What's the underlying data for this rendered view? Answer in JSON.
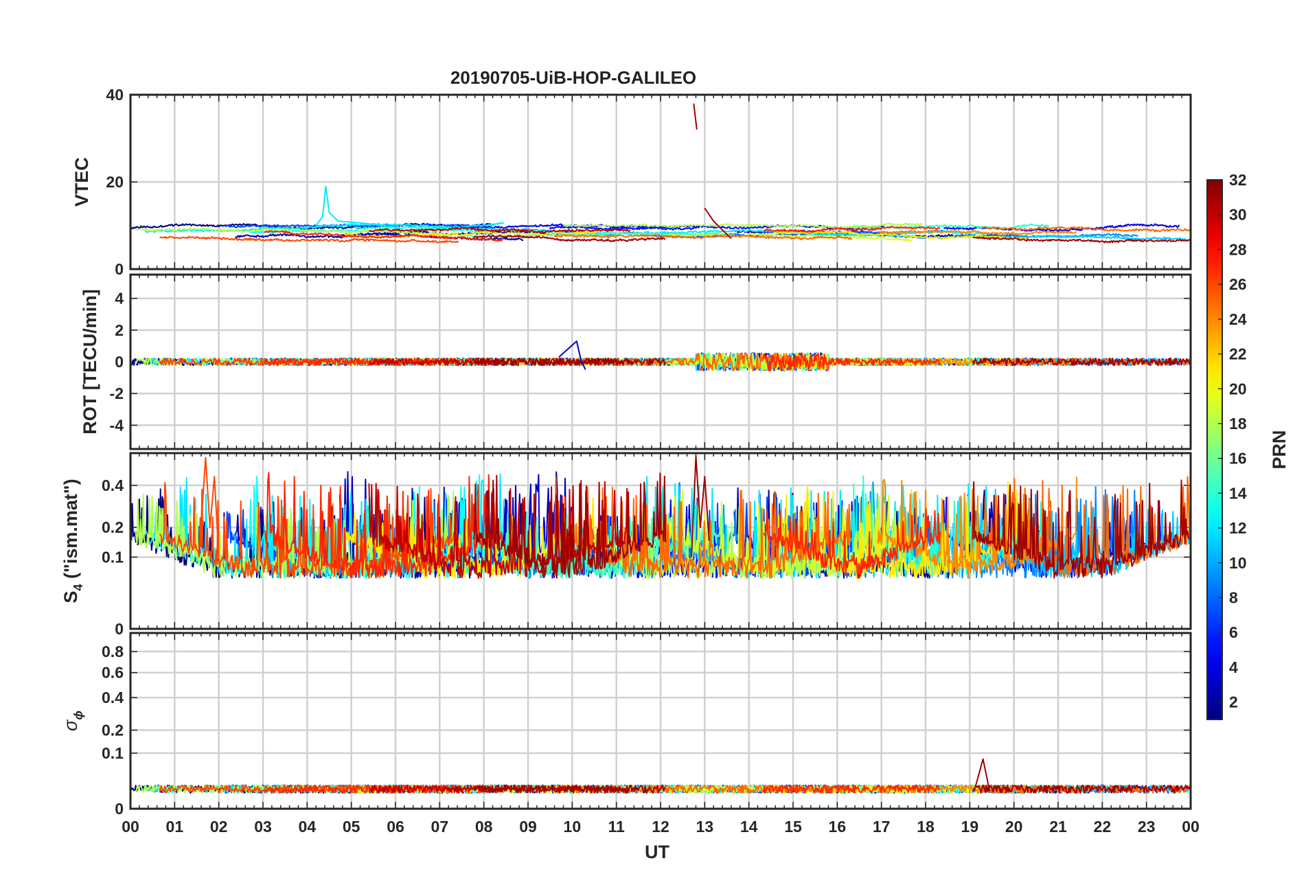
{
  "chart_data": {
    "title": "20190705-UiB-HOP-GALILEO",
    "type": "line",
    "xlabel": "UT",
    "x_tick_labels": [
      "00",
      "01",
      "02",
      "03",
      "04",
      "05",
      "06",
      "07",
      "08",
      "09",
      "10",
      "11",
      "12",
      "13",
      "14",
      "15",
      "16",
      "17",
      "18",
      "19",
      "20",
      "21",
      "22",
      "23",
      "00"
    ],
    "xlim_hours": [
      0,
      24
    ],
    "grid": true,
    "panels": [
      {
        "ylabel": "VTEC",
        "ylim": [
          0,
          40
        ],
        "yticks": [
          0,
          20,
          40
        ]
      },
      {
        "ylabel": "ROT [TECU/min]",
        "ylim": [
          -5.5,
          5.5
        ],
        "yticks": [
          -4,
          -2,
          0,
          2,
          4
        ]
      },
      {
        "ylabel_main": "S",
        "ylabel_sub": "4",
        "ylabel_rest": " (\"ism.mat\")",
        "ylim": [
          0,
          0.6
        ],
        "yticks": [
          0,
          0.1,
          0.2,
          0.4
        ],
        "scale": "sqrt"
      },
      {
        "ylabel_main": "σ",
        "ylabel_sub": "ϕ",
        "ylim": [
          0,
          1
        ],
        "yticks": [
          0,
          0.1,
          0.2,
          0.4,
          0.6,
          0.8
        ],
        "scale": "sqrt"
      }
    ],
    "colorbar": {
      "label": "PRN",
      "range": [
        1,
        32
      ],
      "tick_labels": [
        "2",
        "4",
        "6",
        "8",
        "10",
        "12",
        "14",
        "16",
        "18",
        "20",
        "22",
        "24",
        "26",
        "28",
        "30",
        "32"
      ],
      "colormap": "jet"
    },
    "series_prn": [
      1,
      2,
      3,
      4,
      5,
      7,
      8,
      9,
      11,
      12,
      13,
      14,
      15,
      18,
      19,
      21,
      24,
      25,
      26,
      27,
      30,
      31
    ],
    "notable_features": {
      "vtec_typical": 8.5,
      "vtec_spike_prn12_hour4_4": 19,
      "vtec_spike_prn31_hour12_8": 38,
      "rot_spike_prn3_hour10_1": 1.3,
      "s4_peak_prn31_hour12_8": 0.58,
      "s4_peak_prn26_hour1_7": 0.57,
      "sigma_phi_peak_prn31_hour19_3": 0.08
    }
  }
}
